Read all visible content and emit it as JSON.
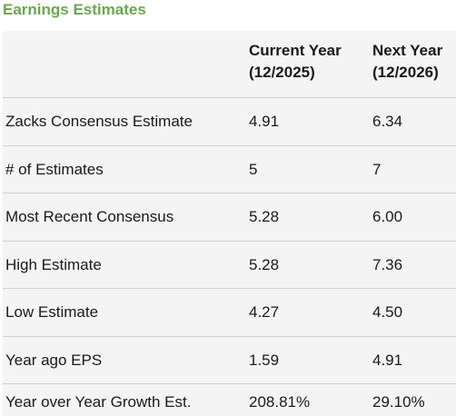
{
  "title": "Earnings Estimates",
  "columns": {
    "current": {
      "line1": "Current Year",
      "line2": "(12/2025)"
    },
    "next": {
      "line1": "Next Year",
      "line2": "(12/2026)"
    }
  },
  "rows": [
    {
      "label": "Zacks Consensus Estimate",
      "current": "4.91",
      "next": "6.34"
    },
    {
      "label": "# of Estimates",
      "current": "5",
      "next": "7"
    },
    {
      "label": "Most Recent Consensus",
      "current": "5.28",
      "next": "6.00"
    },
    {
      "label": "High Estimate",
      "current": "5.28",
      "next": "7.36"
    },
    {
      "label": "Low Estimate",
      "current": "4.27",
      "next": "4.50"
    },
    {
      "label": "Year ago EPS",
      "current": "1.59",
      "next": "4.91"
    },
    {
      "label": "Year over Year Growth Est.",
      "current": "208.81%",
      "next": "29.10%"
    }
  ]
}
